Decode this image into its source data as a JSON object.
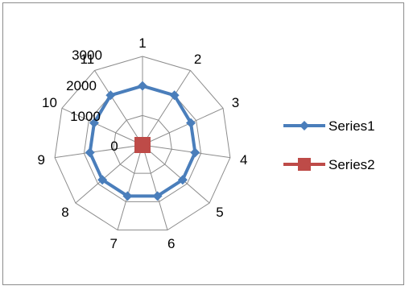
{
  "chart_data": {
    "type": "radar",
    "title": "",
    "categories": [
      "1",
      "2",
      "3",
      "4",
      "5",
      "6",
      "7",
      "8",
      "9",
      "10",
      "11"
    ],
    "radial_axis": {
      "min": 0,
      "max": 3000,
      "major_unit": 1000,
      "tick_labels": [
        "0",
        "1000",
        "2000",
        "3000"
      ]
    },
    "grid": true,
    "legend_position": "right",
    "series": [
      {
        "name": "Series1",
        "color": "#4A7EBB",
        "marker": "diamond",
        "values": [
          2000,
          2000,
          1800,
          1800,
          1800,
          1800,
          1800,
          1800,
          1800,
          1800,
          2000
        ]
      },
      {
        "name": "Series2",
        "color": "#BE4B48",
        "marker": "square",
        "values": [
          0,
          0,
          0,
          0,
          0,
          0,
          0,
          0,
          0,
          0,
          0
        ]
      }
    ]
  }
}
